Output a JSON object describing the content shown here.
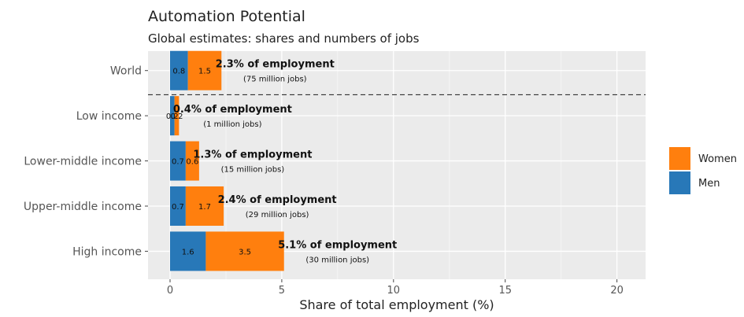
{
  "chart_data": {
    "type": "bar",
    "orientation": "horizontal",
    "stacked": true,
    "title": "Automation Potential",
    "subtitle": "Global estimates: shares and numbers of jobs",
    "xlabel": "Share of total employment (%)",
    "xlim": [
      0,
      21
    ],
    "xticks": [
      0,
      5,
      10,
      15,
      20
    ],
    "grid": true,
    "legend_position": "right",
    "categories": [
      "World",
      "Low income",
      "Lower-middle income",
      "Upper-middle income",
      "High income"
    ],
    "series": [
      {
        "name": "Men",
        "color": "#2878b8",
        "values": [
          0.8,
          0.2,
          0.7,
          0.7,
          1.6
        ],
        "labels": [
          "0.8",
          "0.2",
          "0.7",
          "0.7",
          "1.6"
        ]
      },
      {
        "name": "Women",
        "color": "#ff7f0e",
        "values": [
          1.5,
          0.2,
          0.6,
          1.7,
          3.5
        ],
        "labels": [
          "1.5",
          "0.2",
          "0.6",
          "1.7",
          "3.5"
        ]
      }
    ],
    "annotations": [
      {
        "category": "World",
        "main": "2.3% of employment",
        "sub": "(75 million jobs)"
      },
      {
        "category": "Low income",
        "main": "0.4% of employment",
        "sub": "(1 million jobs)"
      },
      {
        "category": "Lower-middle income",
        "main": "1.3% of employment",
        "sub": "(15 million jobs)"
      },
      {
        "category": "Upper-middle income",
        "main": "2.4% of employment",
        "sub": "(29 million jobs)"
      },
      {
        "category": "High income",
        "main": "5.1% of employment",
        "sub": "(30 million jobs)"
      }
    ],
    "separator": {
      "type": "dashed-line",
      "between": [
        "World",
        "Low income"
      ]
    },
    "legend": [
      {
        "label": "Women",
        "color": "#ff7f0e"
      },
      {
        "label": "Men",
        "color": "#2878b8"
      }
    ]
  }
}
